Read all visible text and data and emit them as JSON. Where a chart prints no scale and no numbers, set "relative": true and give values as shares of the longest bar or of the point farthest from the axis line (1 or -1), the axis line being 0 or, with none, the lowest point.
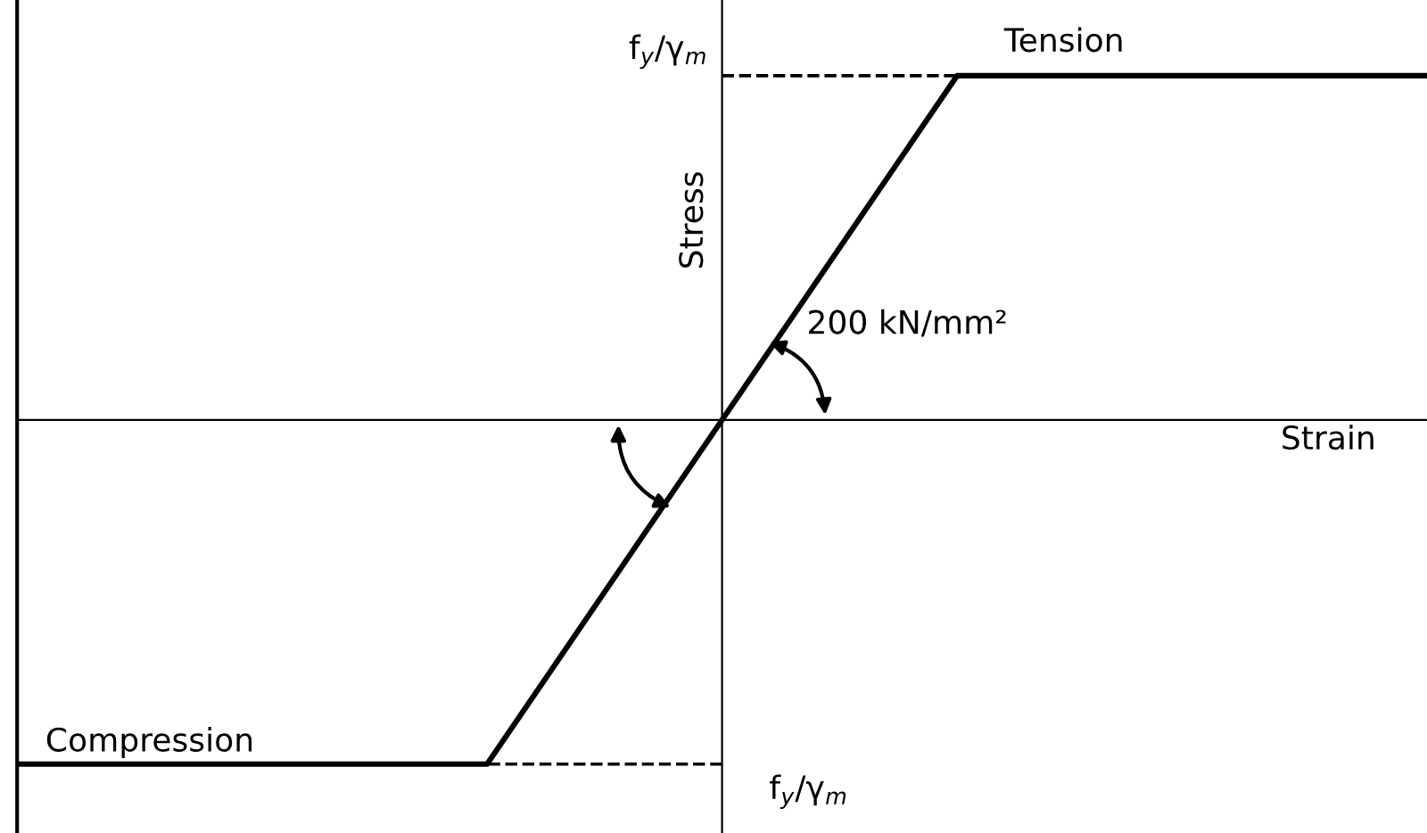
{
  "chart_data": {
    "type": "line",
    "relative": true,
    "xlabel": "Strain",
    "ylabel": "Stress",
    "categories": [
      null,
      null,
      null,
      null
    ],
    "series": [
      {
        "color": "#000000",
        "values": [
          -1,
          -1,
          1,
          1
        ]
      }
    ],
    "ref_lines": [
      {
        "axis": "y",
        "value": 1,
        "label": "f$_{y}$/γ$_{m}$",
        "line_style": "dashed",
        "color": "#000000"
      },
      {
        "axis": "y",
        "value": -1,
        "label": "f$_{y}$/γ$_{m}$",
        "line_style": "dashed",
        "color": "#000000"
      }
    ],
    "annotations": [
      "Tension",
      "Compression",
      "200 kN/mm²"
    ],
    "marker": "none",
    "line_style": "solid",
    "legend": false
  }
}
